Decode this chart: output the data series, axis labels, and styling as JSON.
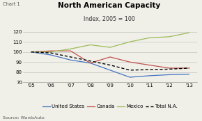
{
  "title": "North American Capacity",
  "subtitle": "Index, 2005 = 100",
  "chart_label": "Chart 1",
  "source": "Source: WardsAuto",
  "years": [
    2005,
    2006,
    2007,
    2008,
    2009,
    2010,
    2011,
    2012,
    2013
  ],
  "x_labels": [
    "'05",
    "'06",
    "'07",
    "'08",
    "'09",
    "'10",
    "'11",
    "'12",
    "'13"
  ],
  "united_states": [
    100.0,
    97.0,
    92.0,
    89.0,
    82.0,
    75.0,
    76.5,
    77.5,
    78.0
  ],
  "canada": [
    100.0,
    101.0,
    101.0,
    89.0,
    95.0,
    90.0,
    87.0,
    84.0,
    84.0
  ],
  "mexico": [
    100.0,
    100.0,
    103.0,
    107.0,
    104.5,
    110.0,
    114.0,
    115.0,
    119.0
  ],
  "total_na": [
    100.0,
    99.0,
    95.0,
    91.0,
    87.0,
    82.0,
    82.5,
    83.0,
    84.0
  ],
  "ylim": [
    70.0,
    125.0
  ],
  "yticks": [
    70.0,
    80.0,
    90.0,
    100.0,
    110.0,
    120.0
  ],
  "color_us": "#4472C4",
  "color_canada": "#C0504D",
  "color_mexico": "#9BBB59",
  "color_total": "#000000",
  "bg_color": "#F0EFE8",
  "plot_bg_color": "#F0EFE8",
  "grid_color": "#BBBBBB",
  "title_fontsize": 7.5,
  "subtitle_fontsize": 5.8,
  "chart_label_fontsize": 4.8,
  "legend_fontsize": 5.0,
  "source_fontsize": 4.5,
  "tick_fontsize": 5.0
}
